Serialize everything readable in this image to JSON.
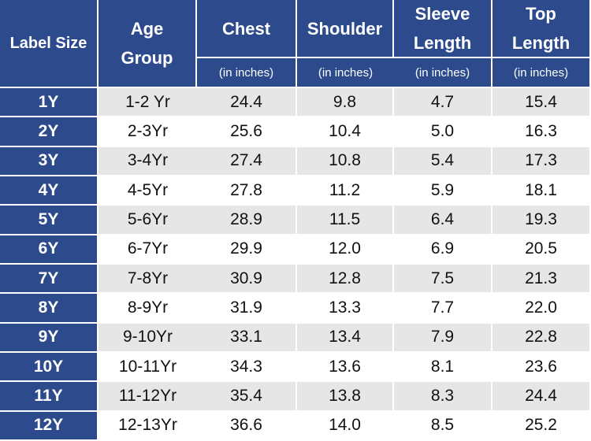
{
  "header": {
    "columns": [
      {
        "title": "Label Size"
      },
      {
        "title": "Age Group"
      },
      {
        "title": "Chest",
        "unit": "(in inches)"
      },
      {
        "title": "Shoulder",
        "unit": "(in inches)"
      },
      {
        "title": "Sleeve Length",
        "unit": "(in inches)"
      },
      {
        "title": "Top Length",
        "unit": "(in inches)"
      }
    ]
  },
  "table": {
    "rows": [
      [
        "1Y",
        "1-2 Yr",
        "24.4",
        "9.8",
        "4.7",
        "15.4"
      ],
      [
        "2Y",
        "2-3Yr",
        "25.6",
        "10.4",
        "5.0",
        "16.3"
      ],
      [
        "3Y",
        "3-4Yr",
        "27.4",
        "10.8",
        "5.4",
        "17.3"
      ],
      [
        "4Y",
        "4-5Yr",
        "27.8",
        "11.2",
        "5.9",
        "18.1"
      ],
      [
        "5Y",
        "5-6Yr",
        "28.9",
        "11.5",
        "6.4",
        "19.3"
      ],
      [
        "6Y",
        "6-7Yr",
        "29.9",
        "12.0",
        "6.9",
        "20.5"
      ],
      [
        "7Y",
        "7-8Yr",
        "30.9",
        "12.8",
        "7.5",
        "21.3"
      ],
      [
        "8Y",
        "8-9Yr",
        "31.9",
        "13.3",
        "7.7",
        "22.0"
      ],
      [
        "9Y",
        "9-10Yr",
        "33.1",
        "13.4",
        "7.9",
        "22.8"
      ],
      [
        "10Y",
        "10-11Yr",
        "34.3",
        "13.6",
        "8.1",
        "23.6"
      ],
      [
        "11Y",
        "11-12Yr",
        "35.4",
        "13.8",
        "8.3",
        "24.4"
      ],
      [
        "12Y",
        "12-13Yr",
        "36.6",
        "14.0",
        "8.5",
        "25.2"
      ]
    ]
  }
}
